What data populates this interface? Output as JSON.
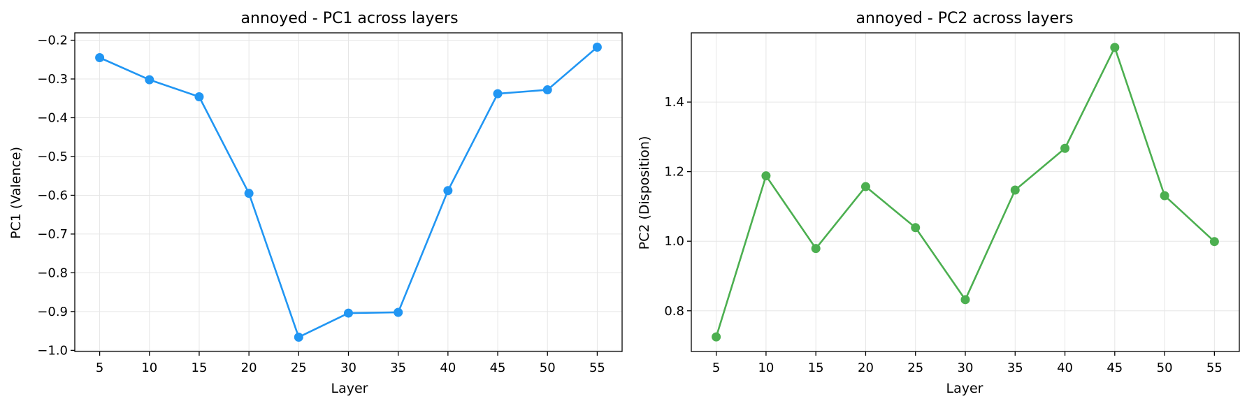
{
  "chart_data": [
    {
      "type": "line",
      "title": "annoyed - PC1 across layers",
      "xlabel": "Layer",
      "ylabel": "PC1 (Valence)",
      "color": "#2196f3",
      "x": [
        5,
        10,
        15,
        20,
        25,
        30,
        35,
        40,
        45,
        50,
        55
      ],
      "y": [
        -0.245,
        -0.302,
        -0.346,
        -0.595,
        -0.966,
        -0.904,
        -0.902,
        -0.588,
        -0.338,
        -0.328,
        -0.218
      ],
      "xticks": [
        5,
        10,
        15,
        20,
        25,
        30,
        35,
        40,
        45,
        50,
        55
      ],
      "yticks": [
        -1.0,
        -0.9,
        -0.8,
        -0.7,
        -0.6,
        -0.5,
        -0.4,
        -0.3,
        -0.2
      ],
      "ytick_labels": [
        "−1.0",
        "−0.9",
        "−0.8",
        "−0.7",
        "−0.6",
        "−0.5",
        "−0.4",
        "−0.3",
        "−0.2"
      ],
      "xlim": [
        2.5,
        57.5
      ],
      "ylim": [
        -1.003,
        -0.181
      ],
      "grid": true
    },
    {
      "type": "line",
      "title": "annoyed - PC2 across layers",
      "xlabel": "Layer",
      "ylabel": "PC2 (Disposition)",
      "color": "#4caf50",
      "x": [
        5,
        10,
        15,
        20,
        25,
        30,
        35,
        40,
        45,
        50,
        55
      ],
      "y": [
        0.725,
        1.188,
        0.979,
        1.157,
        1.039,
        0.832,
        1.147,
        1.267,
        1.557,
        1.131,
        0.999
      ],
      "xticks": [
        5,
        10,
        15,
        20,
        25,
        30,
        35,
        40,
        45,
        50,
        55
      ],
      "yticks": [
        0.8,
        1.0,
        1.2,
        1.4
      ],
      "ytick_labels": [
        "0.8",
        "1.0",
        "1.2",
        "1.4"
      ],
      "xlim": [
        2.5,
        57.5
      ],
      "ylim": [
        0.683,
        1.599
      ],
      "grid": true
    }
  ]
}
